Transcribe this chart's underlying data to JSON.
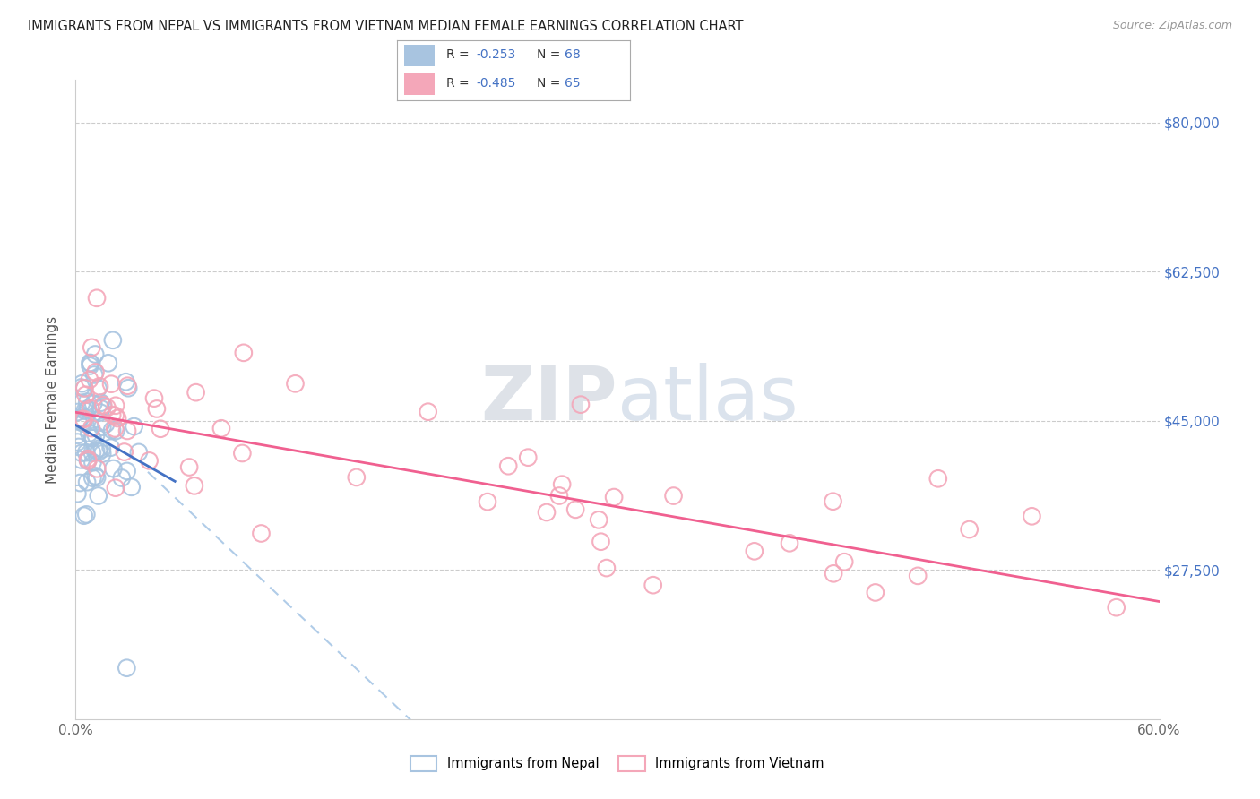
{
  "title": "IMMIGRANTS FROM NEPAL VS IMMIGRANTS FROM VIETNAM MEDIAN FEMALE EARNINGS CORRELATION CHART",
  "source": "Source: ZipAtlas.com",
  "ylabel": "Median Female Earnings",
  "ytick_vals": [
    27500,
    45000,
    62500,
    80000
  ],
  "ytick_labels": [
    "$27,500",
    "$45,000",
    "$62,500",
    "$80,000"
  ],
  "xlim": [
    0.0,
    0.6
  ],
  "ylim": [
    10000,
    85000
  ],
  "nepal_color": "#a8c4e0",
  "vietnam_color": "#f4a7b9",
  "nepal_line_color": "#4472c4",
  "vietnam_line_color": "#f06090",
  "nepal_dashed_color": "#b0cce8",
  "watermark_zip": "ZIP",
  "watermark_atlas": "atlas",
  "nepal_intercept": 44500,
  "nepal_slope": -120000,
  "vietnam_intercept": 46000,
  "vietnam_slope": -37000,
  "nepal_dashed_slope": -200000,
  "nepal_dashed_intercept": 47000
}
